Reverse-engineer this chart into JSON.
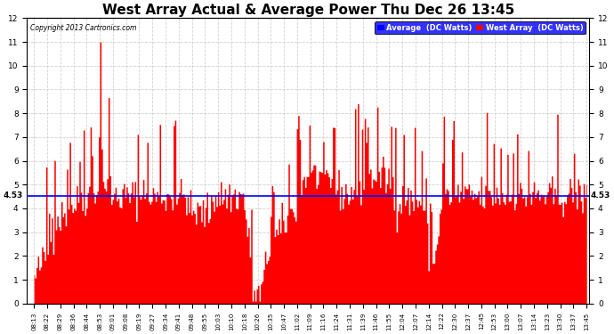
{
  "title": "West Array Actual & Average Power Thu Dec 26 13:45",
  "copyright": "Copyright 2013 Cartronics.com",
  "average_value": 4.53,
  "ylim": [
    0.0,
    12.0
  ],
  "yticks": [
    0.0,
    1.0,
    2.0,
    3.0,
    4.0,
    5.0,
    6.0,
    7.0,
    8.0,
    9.0,
    10.0,
    11.0,
    12.0
  ],
  "red_color": "#FF0000",
  "blue_color": "#0000FF",
  "bg_color": "#FFFFFF",
  "grid_color": "#CCCCCC",
  "title_fontsize": 11,
  "legend_labels": [
    "Average  (DC Watts)",
    "West Array  (DC Watts)"
  ],
  "xtick_labels": [
    "08:13",
    "08:22",
    "08:29",
    "08:36",
    "08:44",
    "08:53",
    "09:01",
    "09:08",
    "09:19",
    "09:27",
    "09:34",
    "09:41",
    "09:48",
    "09:55",
    "10:03",
    "10:10",
    "10:18",
    "10:26",
    "10:35",
    "10:47",
    "11:02",
    "11:09",
    "11:16",
    "11:24",
    "11:31",
    "11:39",
    "11:46",
    "11:55",
    "12:04",
    "12:07",
    "12:14",
    "12:22",
    "12:30",
    "12:37",
    "12:45",
    "12:53",
    "13:00",
    "13:07",
    "13:14",
    "13:23",
    "13:30",
    "13:37",
    "13:45"
  ],
  "n_points": 400,
  "seed": 42
}
